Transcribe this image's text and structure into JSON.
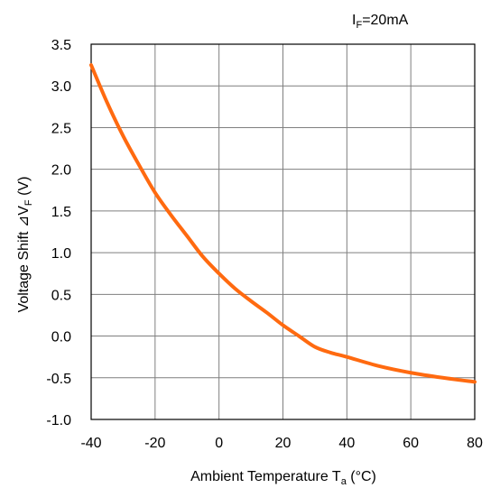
{
  "chart_data": {
    "type": "line",
    "condition": {
      "base": "I",
      "sub": "F",
      "rest": "=20mA"
    },
    "xlabel": {
      "base": "Ambient Temperature T",
      "sub": "a",
      "rest": " (°C)"
    },
    "ylabel": {
      "base": "Voltage Shift ⊿V",
      "sub": "F",
      "rest": " (V)"
    },
    "xlim": [
      -40,
      80
    ],
    "ylim": [
      -1.0,
      3.5
    ],
    "x_ticks": [
      "-40",
      "-20",
      "0",
      "20",
      "40",
      "60",
      "80"
    ],
    "y_ticks": [
      "3.5",
      "3.0",
      "2.5",
      "2.0",
      "1.5",
      "1.0",
      "0.5",
      "0.0",
      "-0.5",
      "-1.0"
    ],
    "grid": true,
    "colors": {
      "line": "#ff6a10",
      "grid": "#7f7f7f",
      "axes": "#000000"
    },
    "series": [
      {
        "x": [
          -40,
          -35,
          -30,
          -25,
          -20,
          -15,
          -10,
          -5,
          0,
          5,
          10,
          15,
          20,
          25,
          30,
          35,
          40,
          50,
          60,
          70,
          80
        ],
        "y": [
          3.25,
          2.8,
          2.4,
          2.05,
          1.72,
          1.45,
          1.2,
          0.95,
          0.75,
          0.57,
          0.42,
          0.28,
          0.13,
          0.0,
          -0.13,
          -0.2,
          -0.25,
          -0.36,
          -0.44,
          -0.5,
          -0.55
        ]
      }
    ]
  }
}
